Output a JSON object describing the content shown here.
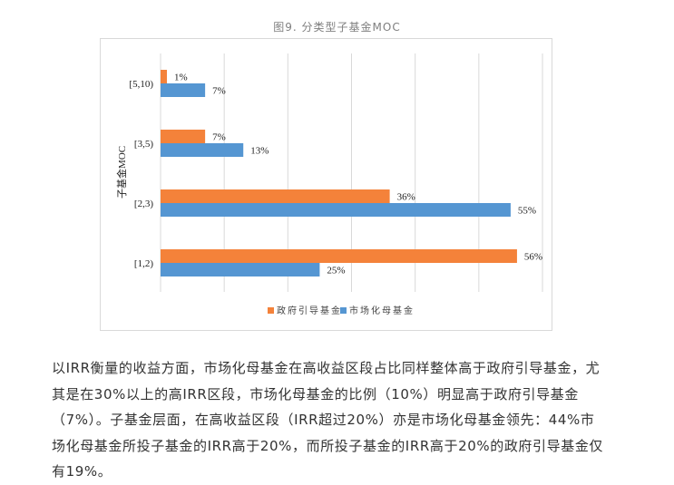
{
  "chart_data": {
    "type": "bar",
    "orientation": "horizontal",
    "title": "图9. 分类型子基金MOC",
    "ylabel": "子基金MOC",
    "xlabel": "",
    "categories": [
      "[5,10)",
      "[3,5)",
      "[2,3)",
      "[1,2)"
    ],
    "series": [
      {
        "name": "政府引导基金",
        "values": [
          1,
          7,
          36,
          56
        ],
        "labels": [
          "1%",
          "7%",
          "36%",
          "56%"
        ],
        "color": "#f4823a"
      },
      {
        "name": "市场化母基金",
        "values": [
          7,
          13,
          55,
          25
        ],
        "labels": [
          "7%",
          "13%",
          "55%",
          "25%"
        ],
        "color": "#5596d2"
      }
    ],
    "xlim": [
      0,
      60
    ],
    "unit": "%",
    "grid": true,
    "tick_labels_shown": false,
    "legend": "bottom"
  },
  "paragraph": {
    "lines": [
      "以IRR衡量的收益方面，市场化母基金在高收益区段占比同样整体高于政府引导基金，尤",
      "其是在30%以上的高IRR区段，市场化母基金的比例（10%）明显高于政府引导基金",
      "（7%）。子基金层面，在高收益区段（IRR超过20%）亦是市场化母基金领先：44%市",
      "场化母基金所投子基金的IRR高于20%，而所投子基金的IRR高于20%的政府引导基金仅",
      "有19%。"
    ]
  }
}
